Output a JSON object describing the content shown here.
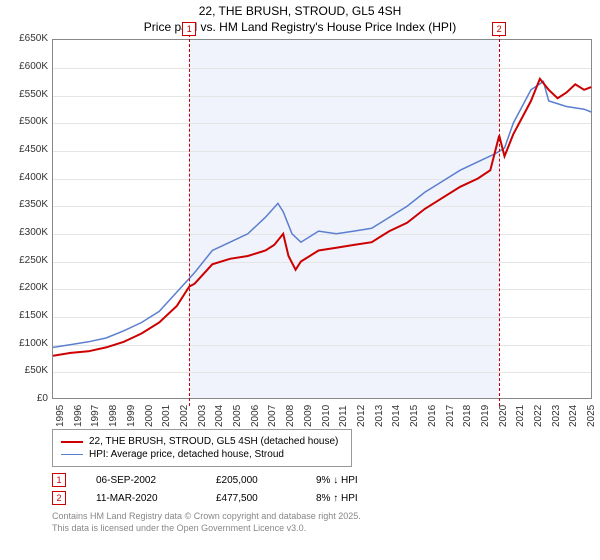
{
  "title": {
    "line1": "22, THE BRUSH, STROUD, GL5 4SH",
    "line2": "Price paid vs. HM Land Registry's House Price Index (HPI)"
  },
  "chart": {
    "type": "line",
    "background_color": "#ffffff",
    "grid_color": "#e5e5e5",
    "shaded_region_color": "#f0f3fb",
    "x_start": 1995,
    "x_end": 2025.5,
    "ylim": [
      0,
      650000
    ],
    "ytick_step": 50000,
    "ytick_labels": [
      "£0",
      "£50K",
      "£100K",
      "£150K",
      "£200K",
      "£250K",
      "£300K",
      "£350K",
      "£400K",
      "£450K",
      "£500K",
      "£550K",
      "£600K",
      "£650K"
    ],
    "xticks": [
      1995,
      1996,
      1997,
      1998,
      1999,
      2000,
      2001,
      2002,
      2003,
      2004,
      2005,
      2006,
      2007,
      2008,
      2009,
      2010,
      2011,
      2012,
      2013,
      2014,
      2015,
      2016,
      2017,
      2018,
      2019,
      2020,
      2021,
      2022,
      2023,
      2024,
      2025
    ],
    "series": [
      {
        "name": "price_paid",
        "label": "22, THE BRUSH, STROUD, GL5 4SH (detached house)",
        "color": "#cc0000",
        "line_width": 2,
        "points": [
          [
            1995,
            80000
          ],
          [
            1996,
            85000
          ],
          [
            1997,
            88000
          ],
          [
            1998,
            95000
          ],
          [
            1999,
            105000
          ],
          [
            2000,
            120000
          ],
          [
            2001,
            140000
          ],
          [
            2002,
            170000
          ],
          [
            2002.7,
            205000
          ],
          [
            2003,
            210000
          ],
          [
            2004,
            245000
          ],
          [
            2005,
            255000
          ],
          [
            2006,
            260000
          ],
          [
            2007,
            270000
          ],
          [
            2007.5,
            280000
          ],
          [
            2008,
            300000
          ],
          [
            2008.3,
            260000
          ],
          [
            2008.7,
            235000
          ],
          [
            2009,
            250000
          ],
          [
            2010,
            270000
          ],
          [
            2011,
            275000
          ],
          [
            2012,
            280000
          ],
          [
            2013,
            285000
          ],
          [
            2014,
            305000
          ],
          [
            2015,
            320000
          ],
          [
            2016,
            345000
          ],
          [
            2017,
            365000
          ],
          [
            2018,
            385000
          ],
          [
            2019,
            400000
          ],
          [
            2019.7,
            415000
          ],
          [
            2020.2,
            477500
          ],
          [
            2020.5,
            440000
          ],
          [
            2021,
            480000
          ],
          [
            2022,
            540000
          ],
          [
            2022.5,
            580000
          ],
          [
            2023,
            560000
          ],
          [
            2023.5,
            545000
          ],
          [
            2024,
            555000
          ],
          [
            2024.5,
            570000
          ],
          [
            2025,
            560000
          ],
          [
            2025.4,
            565000
          ]
        ]
      },
      {
        "name": "hpi",
        "label": "HPI: Average price, detached house, Stroud",
        "color": "#5b7fcf",
        "line_width": 1.5,
        "points": [
          [
            1995,
            95000
          ],
          [
            1996,
            100000
          ],
          [
            1997,
            105000
          ],
          [
            1998,
            112000
          ],
          [
            1999,
            125000
          ],
          [
            2000,
            140000
          ],
          [
            2001,
            160000
          ],
          [
            2002,
            195000
          ],
          [
            2003,
            230000
          ],
          [
            2004,
            270000
          ],
          [
            2005,
            285000
          ],
          [
            2006,
            300000
          ],
          [
            2007,
            330000
          ],
          [
            2007.7,
            355000
          ],
          [
            2008,
            340000
          ],
          [
            2008.5,
            300000
          ],
          [
            2009,
            285000
          ],
          [
            2010,
            305000
          ],
          [
            2011,
            300000
          ],
          [
            2012,
            305000
          ],
          [
            2013,
            310000
          ],
          [
            2014,
            330000
          ],
          [
            2015,
            350000
          ],
          [
            2016,
            375000
          ],
          [
            2017,
            395000
          ],
          [
            2018,
            415000
          ],
          [
            2019,
            430000
          ],
          [
            2020,
            445000
          ],
          [
            2020.5,
            455000
          ],
          [
            2021,
            500000
          ],
          [
            2022,
            560000
          ],
          [
            2022.7,
            575000
          ],
          [
            2023,
            540000
          ],
          [
            2024,
            530000
          ],
          [
            2025,
            525000
          ],
          [
            2025.4,
            520000
          ]
        ]
      }
    ],
    "markers": [
      {
        "n": "1",
        "x": 2002.7,
        "color": "#cc0000"
      },
      {
        "n": "2",
        "x": 2020.2,
        "color": "#cc0000"
      }
    ]
  },
  "records": [
    {
      "n": "1",
      "date": "06-SEP-2002",
      "price": "£205,000",
      "delta": "9% ↓ HPI",
      "color": "#cc0000"
    },
    {
      "n": "2",
      "date": "11-MAR-2020",
      "price": "£477,500",
      "delta": "8% ↑ HPI",
      "color": "#cc0000"
    }
  ],
  "footer": {
    "line1": "Contains HM Land Registry data © Crown copyright and database right 2025.",
    "line2": "This data is licensed under the Open Government Licence v3.0."
  },
  "fonts": {
    "title": 12,
    "axis": 10,
    "legend": 10,
    "footer": 9
  }
}
